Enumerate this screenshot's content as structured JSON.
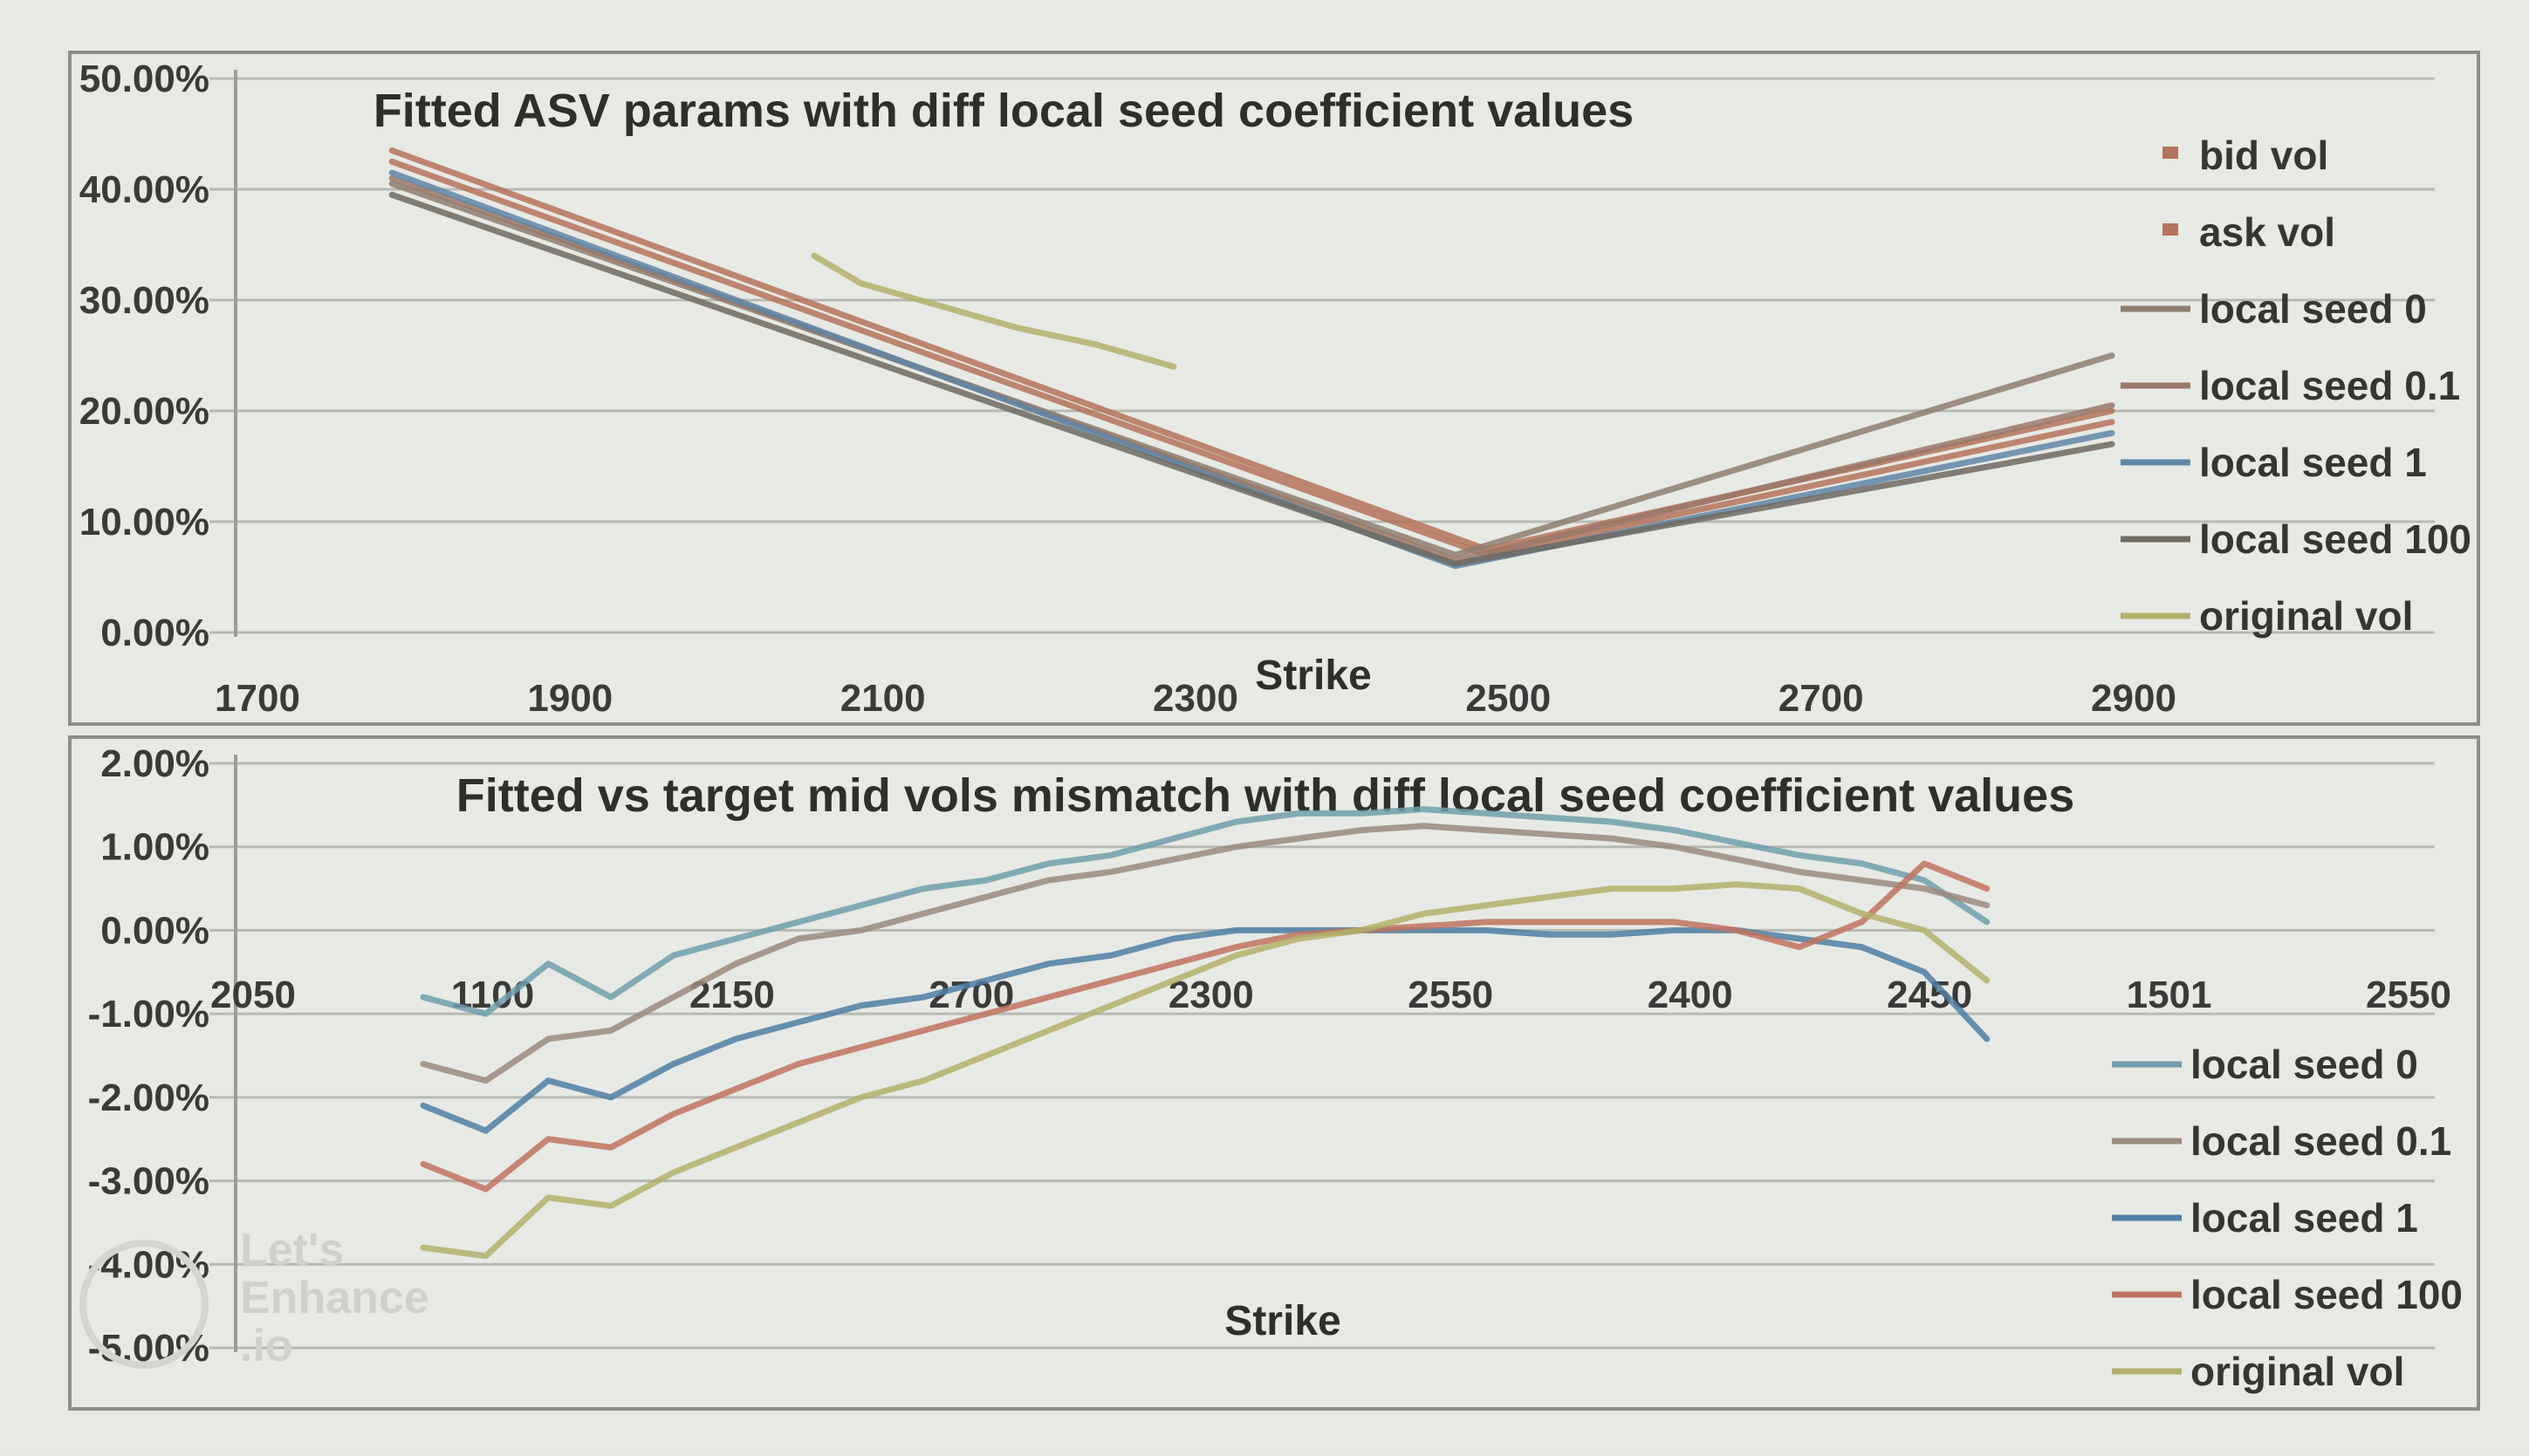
{
  "chart_data": [
    {
      "type": "line",
      "title": "Fitted ASV params with diff local seed coefficient values",
      "xlabel": "Strike",
      "ylabel": "",
      "x_ticks": [
        "1700",
        "1900",
        "2100",
        "2300",
        "2500",
        "2700",
        "2900"
      ],
      "y_ticks": [
        "0.00%",
        "10.00%",
        "20.00%",
        "30.00%",
        "40.00%",
        "50.00%"
      ],
      "xlim": [
        1700,
        2900
      ],
      "ylim": [
        0,
        50
      ],
      "legend_position": "right",
      "grid": true,
      "series": [
        {
          "name": "bid vol",
          "color": "#b4735c",
          "x": [
            1800,
            2500,
            2900
          ],
          "y": [
            43.5,
            7.5,
            20.0
          ]
        },
        {
          "name": "ask vol",
          "color": "#b4735c",
          "x": [
            1800,
            2500,
            2900
          ],
          "y": [
            42.5,
            7.0,
            19.0
          ]
        },
        {
          "name": "local seed 0",
          "color": "#8e7e70",
          "x": [
            1800,
            2480,
            2900
          ],
          "y": [
            40.5,
            7.0,
            25.0
          ]
        },
        {
          "name": "local seed 0.1",
          "color": "#9a7868",
          "x": [
            1800,
            2480,
            2900
          ],
          "y": [
            41.0,
            6.5,
            20.5
          ]
        },
        {
          "name": "local seed 1",
          "color": "#5f86a7",
          "x": [
            1800,
            2480,
            2900
          ],
          "y": [
            41.5,
            6.0,
            18.0
          ]
        },
        {
          "name": "local seed 100",
          "color": "#6f6a62",
          "x": [
            1800,
            2480,
            2900
          ],
          "y": [
            39.5,
            6.2,
            17.0
          ]
        },
        {
          "name": "original vol",
          "color": "#b3b06b",
          "x": [
            2070,
            2100,
            2150,
            2200,
            2250,
            2300
          ],
          "y": [
            34.0,
            31.5,
            29.5,
            27.5,
            26.0,
            24.0
          ]
        }
      ]
    },
    {
      "type": "line",
      "title": "Fitted vs target mid vols mismatch with diff local seed coefficient values",
      "xlabel": "Strike",
      "ylabel": "",
      "x_ticks": [
        "2050",
        "1100",
        "2150",
        "2700",
        "2300",
        "2550",
        "2400",
        "2450",
        "1501",
        "2550"
      ],
      "y_ticks": [
        "2.00%",
        "1.00%",
        "0.00%",
        "-1.00%",
        "-2.00%",
        "-3.00%",
        "-4.00%",
        "-5.00%"
      ],
      "xlim": [
        0,
        9
      ],
      "ylim": [
        -5,
        2
      ],
      "legend_position": "right",
      "grid": true,
      "series": [
        {
          "name": "local seed 0",
          "color": "#6f9fad",
          "x": [
            0.9,
            1.2,
            1.5,
            1.8,
            2.1,
            2.4,
            2.7,
            3.0,
            3.3,
            3.6,
            3.9,
            4.2,
            4.5,
            4.8,
            5.1,
            5.4,
            5.7,
            6.0,
            6.3,
            6.6,
            6.9,
            7.2,
            7.5,
            7.8,
            8.1,
            8.4
          ],
          "y": [
            -0.8,
            -1.0,
            -0.4,
            -0.8,
            -0.3,
            -0.1,
            0.1,
            0.3,
            0.5,
            0.6,
            0.8,
            0.9,
            1.1,
            1.3,
            1.4,
            1.4,
            1.45,
            1.4,
            1.35,
            1.3,
            1.2,
            1.05,
            0.9,
            0.8,
            0.6,
            0.1
          ]
        },
        {
          "name": "local seed 0.1",
          "color": "#9b8a7e",
          "x": [
            0.9,
            1.2,
            1.5,
            1.8,
            2.1,
            2.4,
            2.7,
            3.0,
            3.3,
            3.6,
            3.9,
            4.2,
            4.5,
            4.8,
            5.1,
            5.4,
            5.7,
            6.0,
            6.3,
            6.6,
            6.9,
            7.2,
            7.5,
            7.8,
            8.1,
            8.4
          ],
          "y": [
            -1.6,
            -1.8,
            -1.3,
            -1.2,
            -0.8,
            -0.4,
            -0.1,
            0.0,
            0.2,
            0.4,
            0.6,
            0.7,
            0.85,
            1.0,
            1.1,
            1.2,
            1.25,
            1.2,
            1.15,
            1.1,
            1.0,
            0.85,
            0.7,
            0.6,
            0.5,
            0.3
          ]
        },
        {
          "name": "local seed 1",
          "color": "#4f7fa5",
          "x": [
            0.9,
            1.2,
            1.5,
            1.8,
            2.1,
            2.4,
            2.7,
            3.0,
            3.3,
            3.6,
            3.9,
            4.2,
            4.5,
            4.8,
            5.1,
            5.4,
            5.7,
            6.0,
            6.3,
            6.6,
            6.9,
            7.2,
            7.5,
            7.8,
            8.1,
            8.4
          ],
          "y": [
            -2.1,
            -2.4,
            -1.8,
            -2.0,
            -1.6,
            -1.3,
            -1.1,
            -0.9,
            -0.8,
            -0.6,
            -0.4,
            -0.3,
            -0.1,
            0.0,
            0.0,
            0.0,
            0.0,
            0.0,
            -0.05,
            -0.05,
            0.0,
            0.0,
            -0.1,
            -0.2,
            -0.5,
            -1.3
          ]
        },
        {
          "name": "local seed 100",
          "color": "#c0735f",
          "x": [
            0.9,
            1.2,
            1.5,
            1.8,
            2.1,
            2.4,
            2.7,
            3.0,
            3.3,
            3.6,
            3.9,
            4.2,
            4.5,
            4.8,
            5.1,
            5.4,
            5.7,
            6.0,
            6.3,
            6.6,
            6.9,
            7.2,
            7.5,
            7.8,
            8.1,
            8.4
          ],
          "y": [
            -2.8,
            -3.1,
            -2.5,
            -2.6,
            -2.2,
            -1.9,
            -1.6,
            -1.4,
            -1.2,
            -1.0,
            -0.8,
            -0.6,
            -0.4,
            -0.2,
            -0.05,
            0.0,
            0.05,
            0.1,
            0.1,
            0.1,
            0.1,
            0.0,
            -0.2,
            0.1,
            0.8,
            0.5
          ]
        },
        {
          "name": "original vol",
          "color": "#b3b06b",
          "x": [
            0.9,
            1.2,
            1.5,
            1.8,
            2.1,
            2.4,
            2.7,
            3.0,
            3.3,
            3.6,
            3.9,
            4.2,
            4.5,
            4.8,
            5.1,
            5.4,
            5.7,
            6.0,
            6.3,
            6.6,
            6.9,
            7.2,
            7.5,
            7.8,
            8.1,
            8.4
          ],
          "y": [
            -3.8,
            -3.9,
            -3.2,
            -3.3,
            -2.9,
            -2.6,
            -2.3,
            -2.0,
            -1.8,
            -1.5,
            -1.2,
            -0.9,
            -0.6,
            -0.3,
            -0.1,
            0.0,
            0.2,
            0.3,
            0.4,
            0.5,
            0.5,
            0.55,
            0.5,
            0.2,
            0.0,
            -0.6
          ]
        }
      ]
    }
  ],
  "watermark": {
    "line1": "Let's",
    "line2": "Enhance",
    "line3": ".io"
  }
}
